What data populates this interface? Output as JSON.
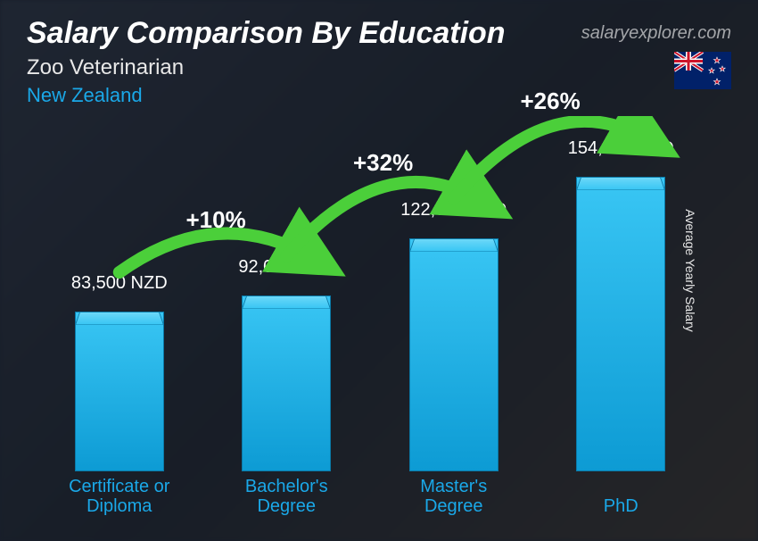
{
  "header": {
    "title": "Salary Comparison By Education",
    "subtitle": "Zoo Veterinarian",
    "country": "New Zealand",
    "watermark": "salaryexplorer.com",
    "axis_label": "Average Yearly Salary"
  },
  "chart": {
    "type": "bar",
    "currency": "NZD",
    "max_value": 154000,
    "bar_color_top": "#6dd8f8",
    "bar_color_main_start": "#39c6f4",
    "bar_color_main_end": "#0d9bd4",
    "bar_border": "#0a7aa8",
    "label_color": "#ffffff",
    "category_color": "#1aa8e8",
    "arrow_color": "#4bcf3a",
    "pct_color": "#ffffff",
    "title_fontsize": 34,
    "subtitle_fontsize": 24,
    "value_fontsize": 20,
    "category_fontsize": 20,
    "pct_fontsize": 26,
    "bars": [
      {
        "category": "Certificate or\nDiploma",
        "value": 83500,
        "value_label": "83,500 NZD"
      },
      {
        "category": "Bachelor's\nDegree",
        "value": 92000,
        "value_label": "92,000 NZD"
      },
      {
        "category": "Master's\nDegree",
        "value": 122000,
        "value_label": "122,000 NZD"
      },
      {
        "category": "PhD",
        "value": 154000,
        "value_label": "154,000 NZD"
      }
    ],
    "increases": [
      {
        "from": 0,
        "to": 1,
        "pct": "+10%"
      },
      {
        "from": 1,
        "to": 2,
        "pct": "+32%"
      },
      {
        "from": 2,
        "to": 3,
        "pct": "+26%"
      }
    ]
  },
  "flag": {
    "bg": "#012169",
    "star_fill": "#cc142b",
    "star_stroke": "#ffffff"
  }
}
